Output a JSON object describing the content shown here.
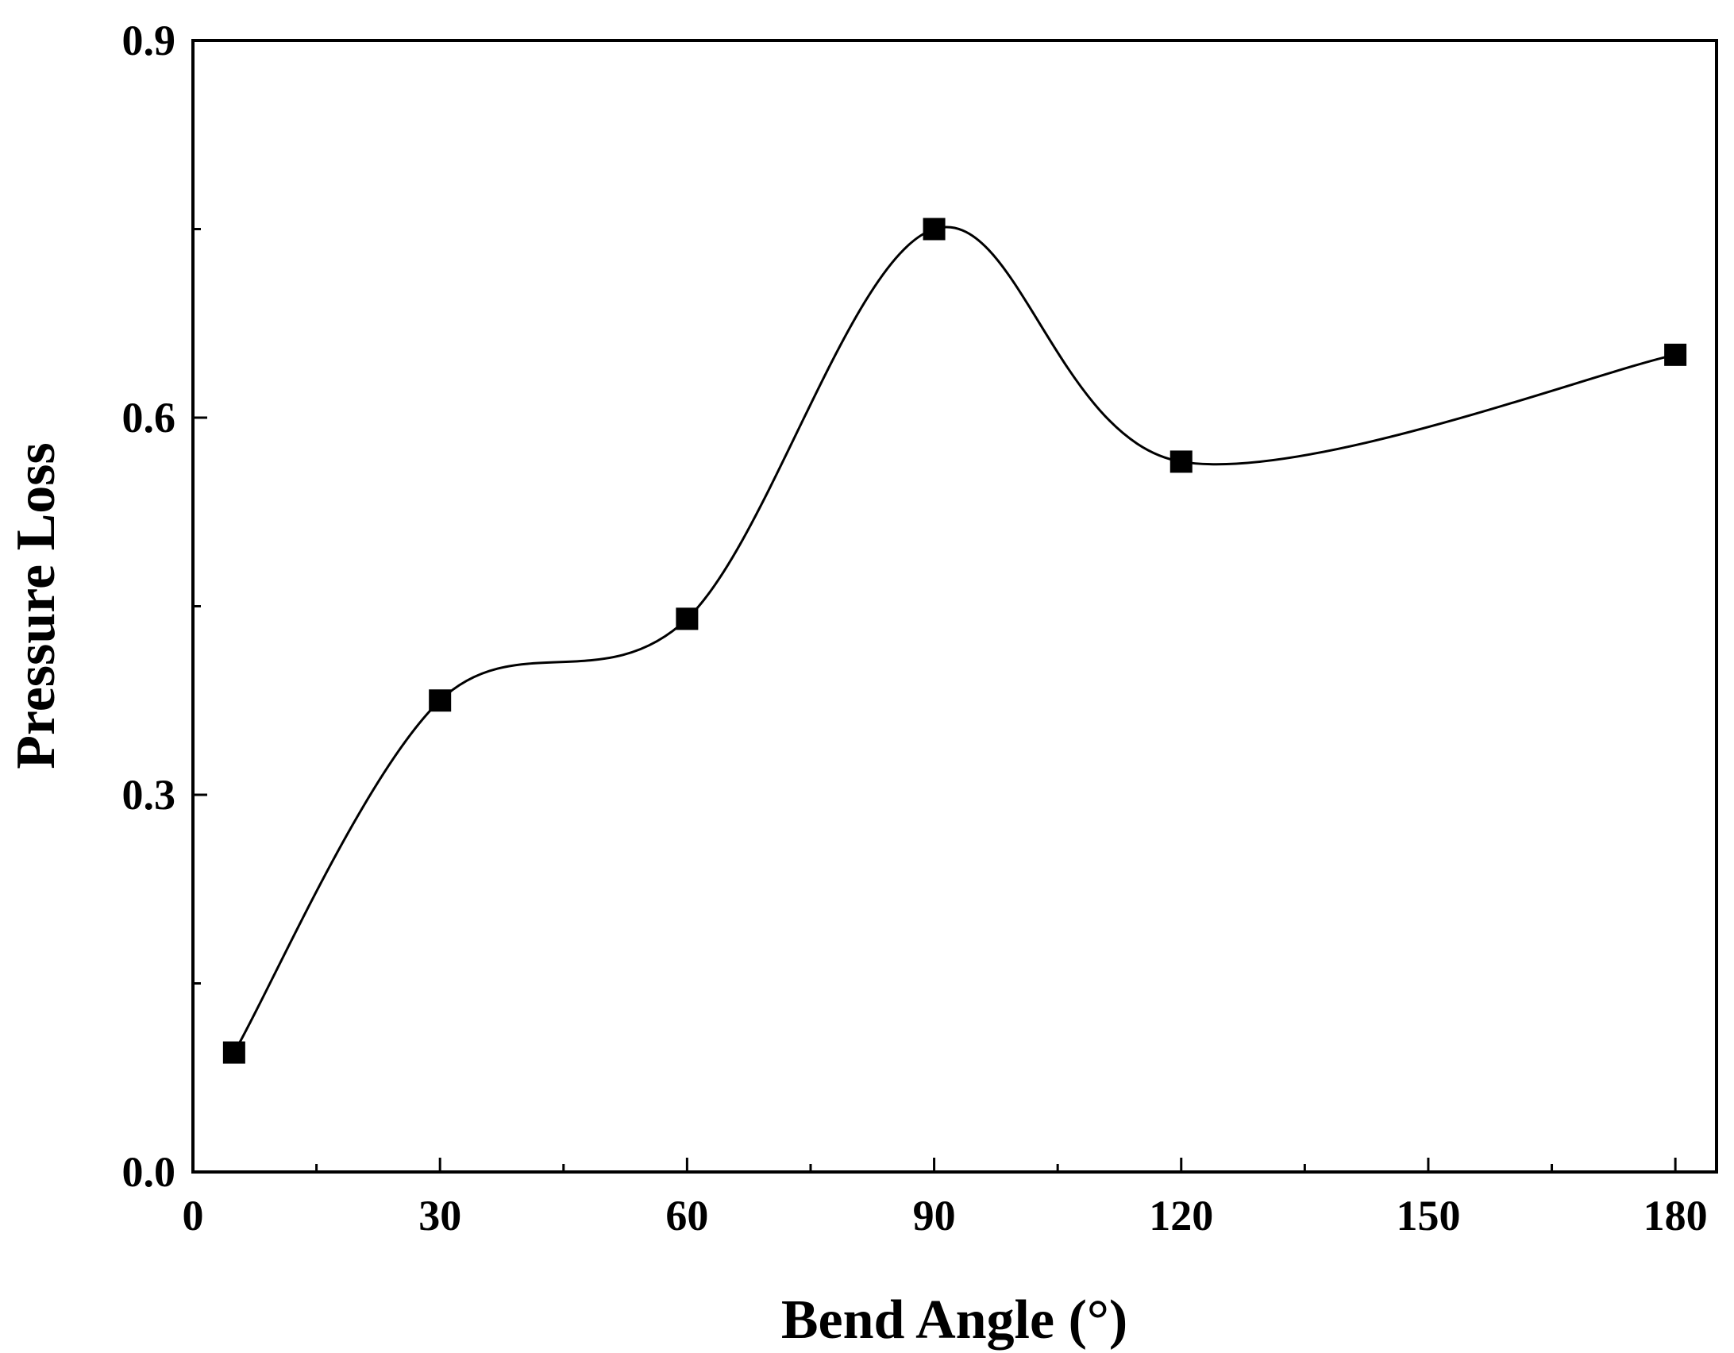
{
  "chart_data": {
    "type": "line",
    "title": "",
    "xlabel": "Bend Angle (°)",
    "ylabel": "Pressure Loss",
    "xlim": [
      0,
      185
    ],
    "ylim": [
      0,
      0.9
    ],
    "x_major_ticks": [
      0,
      30,
      60,
      90,
      120,
      150,
      180
    ],
    "x_minor_ticks": [
      15,
      45,
      75,
      105,
      135,
      165
    ],
    "x_tick_labels": [
      "0",
      "30",
      "60",
      "90",
      "120",
      "150",
      "180"
    ],
    "y_major_ticks": [
      0,
      0.3,
      0.6,
      0.9
    ],
    "y_minor_ticks": [
      0.15,
      0.45,
      0.75
    ],
    "y_tick_labels": [
      "0.0",
      "0.3",
      "0.6",
      "0.9"
    ],
    "grid": false,
    "legend": false,
    "line_style": "smooth",
    "marker": "square",
    "colors": {
      "line": "#000000",
      "marker": "#000000",
      "axis": "#000000"
    },
    "series": [
      {
        "x": [
          5,
          30,
          60,
          90,
          120,
          180
        ],
        "values": [
          0.095,
          0.375,
          0.44,
          0.75,
          0.565,
          0.65
        ]
      }
    ]
  }
}
